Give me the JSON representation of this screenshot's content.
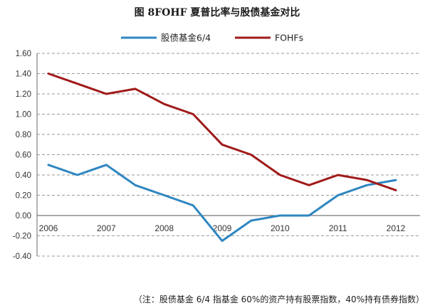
{
  "chart_data": {
    "type": "line",
    "title": "图 8FOHF 夏普比率与股债基金对比",
    "xlabel": "",
    "ylabel": "",
    "x": [
      "2006",
      "2006.5",
      "2007",
      "2007.5",
      "2008",
      "2008.5",
      "2009",
      "2009.5",
      "2010",
      "2010.5",
      "2011",
      "2011.5",
      "2012"
    ],
    "x_tick_labels": [
      "2006",
      "2007",
      "2008",
      "2009",
      "2010",
      "2011",
      "2012"
    ],
    "ylim": [
      -0.4,
      1.6
    ],
    "y_ticks": [
      "-0.40",
      "-0.20",
      "0.00",
      "0.20",
      "0.40",
      "0.60",
      "0.80",
      "1.00",
      "1.20",
      "1.40",
      "1.60"
    ],
    "grid": true,
    "legend_position": "top",
    "series": [
      {
        "name": "股债基金6/4",
        "color": "#2e86c1",
        "values": [
          0.5,
          0.4,
          0.5,
          0.3,
          0.2,
          0.1,
          -0.25,
          -0.05,
          0.0,
          0.0,
          0.2,
          0.3,
          0.35
        ]
      },
      {
        "name": "FOHFs",
        "color": "#a01a1a",
        "values": [
          1.4,
          1.3,
          1.2,
          1.25,
          1.1,
          1.0,
          0.7,
          0.6,
          0.4,
          0.3,
          0.4,
          0.35,
          0.25
        ]
      }
    ]
  },
  "footnote": "（注：股债基金 6/4 指基金 60%的资产持有股票指数，40%持有债券指数）"
}
